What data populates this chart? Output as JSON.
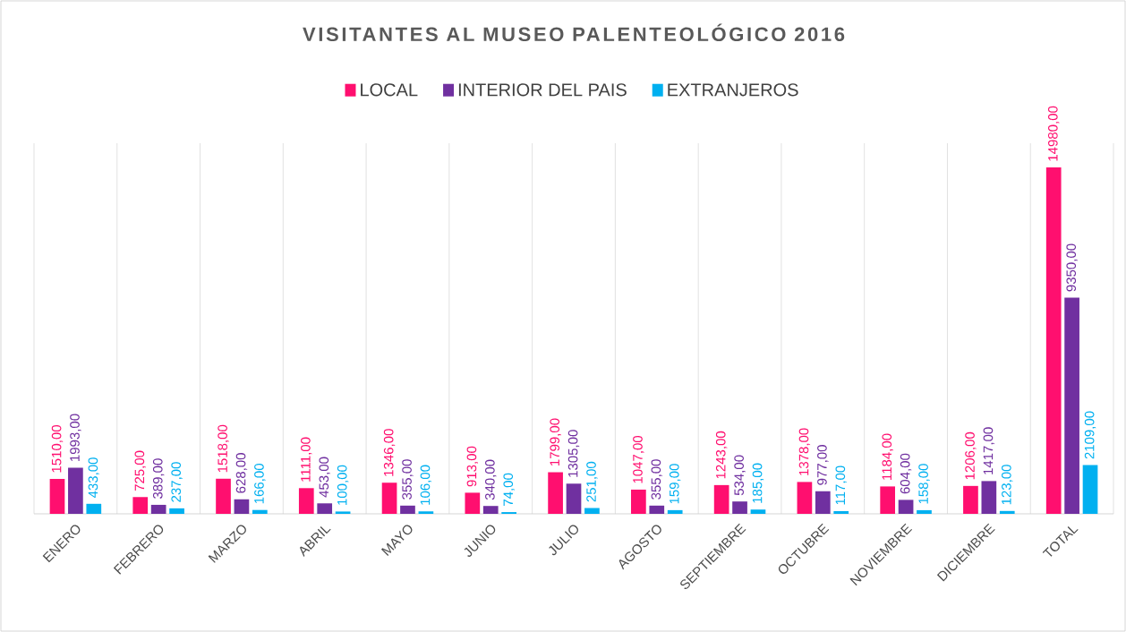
{
  "chart_data": {
    "type": "bar",
    "title": "VISITANTES AL MUSEO PALENTEOLÓGICO 2016",
    "categories": [
      "ENERO",
      "FEBRERO",
      "MARZO",
      "ABRIL",
      "MAYO",
      "JUNIO",
      "JULIO",
      "AGOSTO",
      "SEPTIEMBRE",
      "OCTUBRE",
      "NOVIEMBRE",
      "DICIEMBRE",
      "TOTAL"
    ],
    "series": [
      {
        "name": "LOCAL",
        "color": "#ff0f6f",
        "values": [
          1510,
          725,
          1518,
          1111,
          1346,
          913,
          1799,
          1047,
          1243,
          1378,
          1184,
          1206,
          14980
        ],
        "value_labels": [
          "1510,00",
          "725,00",
          "1518,00",
          "1111,00",
          "1346,00",
          "913,00",
          "1799,00",
          "1047,00",
          "1243,00",
          "1378,00",
          "1184,00",
          "1206,00",
          "14980,00"
        ]
      },
      {
        "name": "INTERIOR DEL PAIS",
        "color": "#7030a0",
        "values": [
          1993,
          389,
          628,
          453,
          355,
          340,
          1305,
          355,
          534,
          977,
          604,
          1417,
          9350
        ],
        "value_labels": [
          "1993,00",
          "389,00",
          "628,00",
          "453,00",
          "355,00",
          "340,00",
          "1305,00",
          "355,00",
          "534,00",
          "977,00",
          "604,00",
          "1417,00",
          "9350,00"
        ]
      },
      {
        "name": "EXTRANJEROS",
        "color": "#00b0f0",
        "values": [
          433,
          237,
          166,
          100,
          106,
          74,
          251,
          159,
          185,
          117,
          158,
          123,
          2109
        ],
        "value_labels": [
          "433,00",
          "237,00",
          "166,00",
          "100,00",
          "106,00",
          "74,00",
          "251,00",
          "159,00",
          "185,00",
          "117,00",
          "158,00",
          "123,00",
          "2109,00"
        ]
      }
    ],
    "grid": "x",
    "legend": "top"
  }
}
